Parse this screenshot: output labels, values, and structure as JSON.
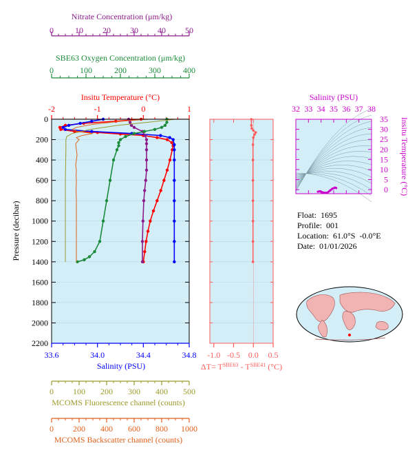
{
  "colors": {
    "nitrate": "#8b1a8b",
    "oxygen": "#1a8b3a",
    "temperature": "#ff0000",
    "salinity": "#0000ff",
    "fluorescence": "#9a9a2a",
    "backscatter": "#e0601a",
    "delta_t": "#ff5a5a",
    "ts_axis": "#cc00cc",
    "panel_bg": "#d4eef8"
  },
  "info": {
    "float_label": "Float:",
    "float_value": "1695",
    "profile_label": "Profile:",
    "profile_value": "001",
    "location_label": "Location:",
    "location_value": "61.0°S  -0.0°E",
    "date_label": "Date:",
    "date_value": "01/01/2026"
  },
  "chart_data": [
    {
      "type": "line",
      "id": "main-profile",
      "ylabel": "Pressure (decibar)",
      "ylim": [
        0,
        2200
      ],
      "yticks": [
        0,
        200,
        400,
        600,
        800,
        1000,
        1200,
        1400,
        1600,
        1800,
        2000,
        2200
      ],
      "y_inverted": true,
      "axes": {
        "nitrate": {
          "label": "Nitrate Concentration (μm/kg)",
          "range": [
            0,
            50
          ],
          "ticks": [
            0,
            10,
            20,
            30,
            40,
            50
          ]
        },
        "oxygen": {
          "label": "SBE63 Oxygen Concentration (μm/kg)",
          "range": [
            0,
            400
          ],
          "ticks": [
            0,
            100,
            200,
            300,
            400
          ]
        },
        "temperature": {
          "label": "Insitu Temperature (°C)",
          "range": [
            -2,
            1
          ],
          "ticks": [
            -2,
            -1,
            0,
            1
          ]
        },
        "salinity": {
          "label": "Salinity (PSU)",
          "range": [
            33.6,
            34.8
          ],
          "ticks": [
            "33.6",
            "34.0",
            "34.4",
            "34.8"
          ]
        },
        "fluorescence": {
          "label": "MCOMS Fluorescence channel (counts)",
          "range": [
            0,
            500
          ],
          "ticks": [
            0,
            100,
            200,
            300,
            400,
            500
          ]
        },
        "backscatter": {
          "label": "MCOMS Backscatter channel (counts)",
          "range": [
            0,
            1000
          ],
          "ticks": [
            0,
            200,
            400,
            600,
            800,
            1000
          ]
        }
      },
      "series": [
        {
          "key": "temperature",
          "marker": "dot",
          "points": [
            [
              -0.05,
              0
            ],
            [
              -0.6,
              20
            ],
            [
              -1.3,
              40
            ],
            [
              -1.7,
              60
            ],
            [
              -1.82,
              80
            ],
            [
              -1.8,
              100
            ],
            [
              -1.5,
              120
            ],
            [
              -1.0,
              130
            ],
            [
              -0.5,
              145
            ],
            [
              0.0,
              160
            ],
            [
              0.3,
              180
            ],
            [
              0.52,
              200
            ],
            [
              0.62,
              230
            ],
            [
              0.65,
              260
            ],
            [
              0.63,
              300
            ],
            [
              0.58,
              400
            ],
            [
              0.52,
              500
            ],
            [
              0.45,
              600
            ],
            [
              0.38,
              700
            ],
            [
              0.3,
              800
            ],
            [
              0.22,
              900
            ],
            [
              0.15,
              1000
            ],
            [
              0.1,
              1100
            ],
            [
              0.06,
              1200
            ],
            [
              0.03,
              1300
            ],
            [
              0.0,
              1400
            ]
          ]
        },
        {
          "key": "salinity",
          "marker": "dot",
          "points": [
            [
              34.05,
              0
            ],
            [
              33.95,
              20
            ],
            [
              33.85,
              40
            ],
            [
              33.75,
              60
            ],
            [
              33.7,
              80
            ],
            [
              33.72,
              100
            ],
            [
              33.95,
              120
            ],
            [
              34.3,
              140
            ],
            [
              34.55,
              160
            ],
            [
              34.63,
              180
            ],
            [
              34.66,
              200
            ],
            [
              34.67,
              250
            ],
            [
              34.67,
              300
            ],
            [
              34.67,
              400
            ],
            [
              34.67,
              600
            ],
            [
              34.67,
              800
            ],
            [
              34.67,
              1000
            ],
            [
              34.67,
              1200
            ],
            [
              34.67,
              1400
            ]
          ]
        },
        {
          "key": "nitrate",
          "marker": "dot",
          "points": [
            [
              28,
              0
            ],
            [
              28.5,
              30
            ],
            [
              29,
              60
            ],
            [
              30,
              80
            ],
            [
              33,
              120
            ],
            [
              34,
              160
            ],
            [
              34.5,
              200
            ],
            [
              34.5,
              240
            ],
            [
              34.5,
              300
            ],
            [
              34.5,
              400
            ],
            [
              34.5,
              500
            ],
            [
              34.2,
              600
            ],
            [
              33.8,
              700
            ],
            [
              33.5,
              800
            ],
            [
              33.2,
              1000
            ],
            [
              33,
              1200
            ],
            [
              33,
              1400
            ]
          ]
        },
        {
          "key": "oxygen",
          "marker": "dot",
          "points": [
            [
              335,
              0
            ],
            [
              335,
              30
            ],
            [
              330,
              60
            ],
            [
              320,
              80
            ],
            [
              300,
              100
            ],
            [
              270,
              120
            ],
            [
              240,
              140
            ],
            [
              215,
              170
            ],
            [
              200,
              200
            ],
            [
              195,
              230
            ],
            [
              195,
              260
            ],
            [
              190,
              300
            ],
            [
              180,
              400
            ],
            [
              170,
              600
            ],
            [
              160,
              800
            ],
            [
              150,
              1000
            ],
            [
              140,
              1200
            ],
            [
              125,
              1300
            ],
            [
              110,
              1350
            ],
            [
              95,
              1380
            ],
            [
              75,
              1400
            ]
          ]
        },
        {
          "key": "fluorescence",
          "marker": "none",
          "points": [
            [
              450,
              0
            ],
            [
              350,
              30
            ],
            [
              240,
              60
            ],
            [
              140,
              100
            ],
            [
              75,
              140
            ],
            [
              55,
              170
            ],
            [
              52,
              200
            ],
            [
              52,
              300
            ],
            [
              50,
              600
            ],
            [
              50,
              800
            ],
            [
              50,
              1100
            ],
            [
              50,
              1400
            ]
          ]
        },
        {
          "key": "backscatter",
          "marker": "none",
          "points": [
            [
              700,
              0
            ],
            [
              500,
              20
            ],
            [
              300,
              50
            ],
            [
              180,
              80
            ],
            [
              150,
              100
            ],
            [
              190,
              120
            ],
            [
              300,
              140
            ],
            [
              220,
              160
            ],
            [
              180,
              180
            ],
            [
              200,
              200
            ],
            [
              175,
              240
            ],
            [
              180,
              300
            ],
            [
              185,
              350
            ],
            [
              180,
              400
            ],
            [
              175,
              450
            ],
            [
              180,
              500
            ],
            [
              178,
              550
            ],
            [
              180,
              600
            ],
            [
              178,
              700
            ],
            [
              180,
              800
            ],
            [
              180,
              1000
            ],
            [
              180,
              1200
            ],
            [
              180,
              1400
            ]
          ]
        }
      ]
    },
    {
      "type": "line",
      "id": "delta-t",
      "xlabel": "ΔT= T^SBE63 - T^SBE41 (°C)",
      "xlim": [
        -1.1,
        0.5
      ],
      "xticks": [
        "-1.0",
        "-0.5",
        "0.0",
        "0.5"
      ],
      "ylim": [
        0,
        2200
      ],
      "series": [
        {
          "name": "ΔT",
          "points": [
            [
              -0.05,
              0
            ],
            [
              -0.05,
              60
            ],
            [
              -0.04,
              90
            ],
            [
              0.0,
              110
            ],
            [
              0.06,
              130
            ],
            [
              0.03,
              150
            ],
            [
              0.0,
              180
            ],
            [
              -0.01,
              250
            ],
            [
              -0.01,
              400
            ],
            [
              -0.01,
              600
            ],
            [
              -0.01,
              800
            ],
            [
              -0.01,
              1000
            ],
            [
              -0.01,
              1200
            ],
            [
              -0.01,
              1400
            ]
          ]
        }
      ]
    },
    {
      "type": "scatter",
      "id": "ts-diagram",
      "xlabel": "Salinity (PSU)",
      "ylabel": "Insitu Temperature (°C)",
      "xlim": [
        32,
        38
      ],
      "ylim": [
        -2,
        35
      ],
      "xticks": [
        32,
        33,
        34,
        35,
        36,
        37,
        38
      ],
      "yticks": [
        0,
        5,
        10,
        15,
        20,
        25,
        30,
        35
      ],
      "series": [
        {
          "name": "profile",
          "points": [
            [
              33.75,
              -1.0
            ],
            [
              33.9,
              -0.8
            ],
            [
              34.1,
              -1.3
            ],
            [
              34.3,
              -1.6
            ],
            [
              34.5,
              -1.5
            ],
            [
              34.7,
              -0.5
            ],
            [
              34.9,
              0.5
            ],
            [
              35.1,
              1.0
            ],
            [
              35.2,
              0.8
            ]
          ]
        }
      ]
    }
  ]
}
